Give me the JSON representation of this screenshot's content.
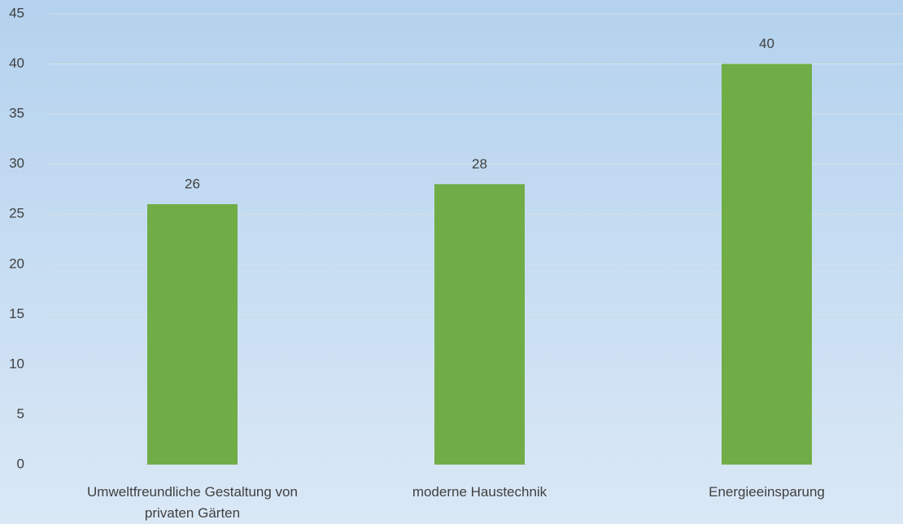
{
  "chart_data": {
    "type": "bar",
    "categories": [
      "Umweltfreundliche Gestaltung von privaten Gärten",
      "moderne Haustechnik",
      "Energieeinsparung"
    ],
    "values": [
      26,
      28,
      40
    ],
    "color": "#70ad47",
    "ylim": [
      0,
      45
    ],
    "yticks": [
      0,
      5,
      10,
      15,
      20,
      25,
      30,
      35,
      40,
      45
    ],
    "grid": true,
    "data_labels": true
  }
}
